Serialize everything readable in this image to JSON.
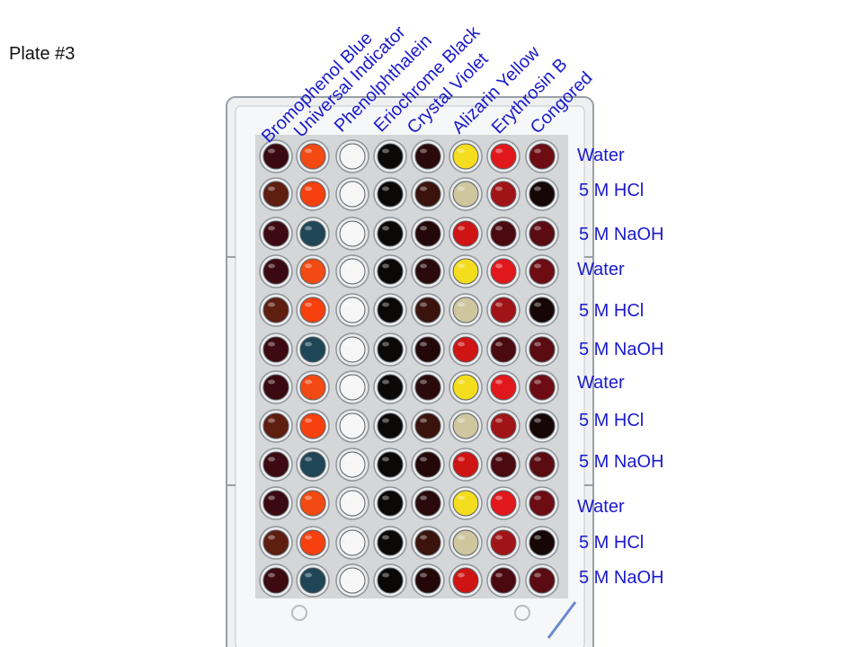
{
  "title": "Plate #3",
  "columns": [
    "Bromophenol Blue",
    "Universal Indicator",
    "Phenolphthalein",
    "Eriochrome Black",
    "Crystal Violet",
    "Alizarin Yellow",
    "Erythrosin B",
    "Congored"
  ],
  "rows": [
    "Water",
    "5 M HCl",
    "5 M NaOH",
    "Water",
    "5 M HCl",
    "5 M NaOH",
    "Water",
    "5 M HCl",
    "5 M NaOH",
    "Water",
    "5 M HCl",
    "5 M NaOH"
  ],
  "colors": {
    "label": "#1a1acc",
    "Water": [
      "#3a0a10",
      "#f24a12",
      "#f6f6f6",
      "#0b0808",
      "#2a0a0a",
      "#f3dd1e",
      "#e0181c",
      "#6e0c14"
    ],
    "5 M HCl": [
      "#5e1e10",
      "#f6400e",
      "#f6f6f6",
      "#0b0808",
      "#3a130c",
      "#cfc6a0",
      "#a01418",
      "#160606"
    ],
    "5 M NaOH": [
      "#3c0a10",
      "#1f4656",
      "#f6f6f6",
      "#0b0808",
      "#240808",
      "#cf1414",
      "#4a0a10",
      "#5a0c12"
    ]
  }
}
